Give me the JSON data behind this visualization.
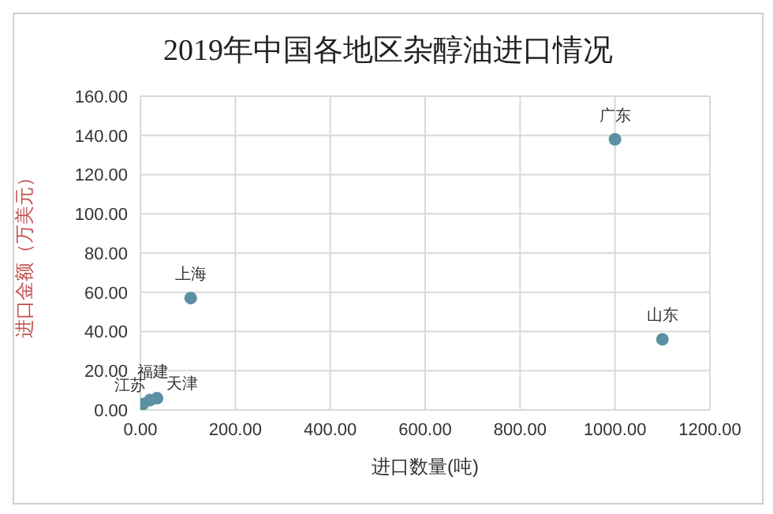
{
  "chart_data": {
    "type": "scatter",
    "title": "2019年中国各地区杂醇油进口情况",
    "xlabel": "进口数量(吨)",
    "ylabel": "进口金额（万美元）",
    "series": [
      {
        "name": "广东",
        "color": "#5b8fa3",
        "x": [
          1000
        ],
        "values": [
          138
        ]
      },
      {
        "name": "山东",
        "color": "#5b8fa3",
        "x": [
          1100
        ],
        "values": [
          36
        ]
      },
      {
        "name": "上海",
        "color": "#5b8fa3",
        "x": [
          106
        ],
        "values": [
          57
        ]
      },
      {
        "name": "江苏",
        "color": "#5b8fa3",
        "x": [
          5
        ],
        "values": [
          3
        ]
      },
      {
        "name": "福建",
        "color": "#5b8fa3",
        "x": [
          20
        ],
        "values": [
          5
        ]
      },
      {
        "name": "天津",
        "color": "#5b8fa3",
        "x": [
          35
        ],
        "values": [
          6
        ]
      }
    ],
    "xlim": [
      0,
      1200
    ],
    "xticks": [
      {
        "value": 0,
        "label": "0.00"
      },
      {
        "value": 200,
        "label": "200.00"
      },
      {
        "value": 400,
        "label": "400.00"
      },
      {
        "value": 600,
        "label": "600.00"
      },
      {
        "value": 800,
        "label": "800.00"
      },
      {
        "value": 1000,
        "label": "1000.00"
      },
      {
        "value": 1200,
        "label": "1200.00"
      }
    ],
    "ylim": [
      0,
      160
    ],
    "yticks": [
      {
        "value": 0,
        "label": "0.00"
      },
      {
        "value": 20,
        "label": "20.00"
      },
      {
        "value": 40,
        "label": "40.00"
      },
      {
        "value": 60,
        "label": "60.00"
      },
      {
        "value": 80,
        "label": "80.00"
      },
      {
        "value": 100,
        "label": "100.00"
      },
      {
        "value": 120,
        "label": "120.00"
      },
      {
        "value": 140,
        "label": "140.00"
      },
      {
        "value": 160,
        "label": "160.00"
      }
    ],
    "grid": true,
    "legend": false,
    "marker": "circle"
  }
}
